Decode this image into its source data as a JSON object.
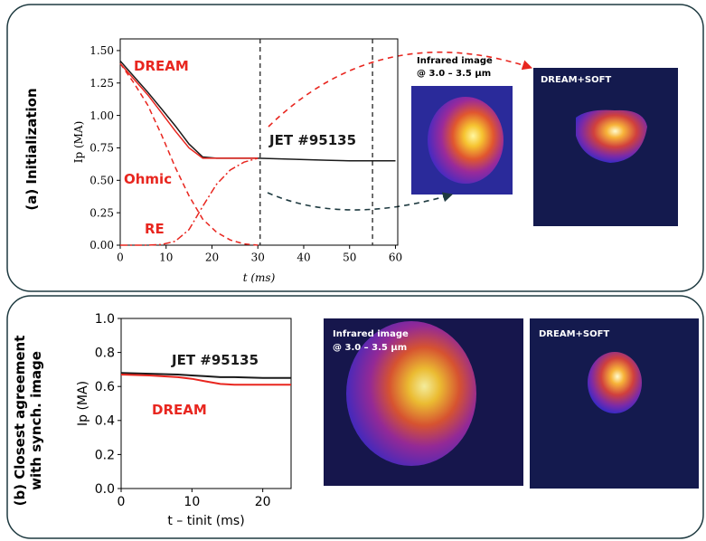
{
  "chart_data": [
    {
      "type": "line",
      "xlabel": "t (ms)",
      "ylabel": "Ip (MA)",
      "x": [
        0,
        3,
        6,
        9,
        12,
        15,
        18,
        21,
        24,
        27,
        30,
        35,
        40,
        45,
        50,
        55,
        60
      ],
      "series": [
        {
          "name": "JET #95135",
          "color": "#1a1a1a",
          "linestyle": "solid",
          "values": [
            1.42,
            1.3,
            1.18,
            1.05,
            0.92,
            0.78,
            0.68,
            0.67,
            0.67,
            0.67,
            0.67,
            0.665,
            0.66,
            0.655,
            0.65,
            0.65,
            0.65
          ]
        },
        {
          "name": "DREAM",
          "color": "#e8261f",
          "linestyle": "solid",
          "values": [
            1.4,
            1.28,
            1.16,
            1.02,
            0.88,
            0.75,
            0.67,
            0.67,
            0.67,
            0.67,
            0.67,
            null,
            null,
            null,
            null,
            null,
            null
          ]
        },
        {
          "name": "Ohmic",
          "color": "#e8261f",
          "linestyle": "dashed",
          "values": [
            1.4,
            1.25,
            1.08,
            0.85,
            0.6,
            0.38,
            0.2,
            0.1,
            0.04,
            0.01,
            0.0,
            null,
            null,
            null,
            null,
            null,
            null
          ]
        },
        {
          "name": "RE",
          "color": "#e8261f",
          "linestyle": "dashdot",
          "values": [
            0,
            0,
            0,
            0.005,
            0.03,
            0.12,
            0.3,
            0.47,
            0.58,
            0.64,
            0.67,
            null,
            null,
            null,
            null,
            null,
            null
          ]
        }
      ],
      "vlines": [
        30.5,
        55
      ],
      "xlim": [
        0,
        60.5
      ],
      "xticks": [
        0,
        10,
        20,
        30,
        40,
        50,
        60
      ],
      "ylim": [
        0,
        1.59
      ],
      "yticks": [
        {
          "value": 0,
          "label": "0.00"
        },
        {
          "value": 0.25,
          "label": "0.25"
        },
        {
          "value": 0.5,
          "label": "0.50"
        },
        {
          "value": 0.75,
          "label": "0.75"
        },
        {
          "value": 1,
          "label": "1.00"
        },
        {
          "value": 1.25,
          "label": "1.25"
        },
        {
          "value": 1.5,
          "label": "1.50"
        }
      ]
    },
    {
      "type": "line",
      "xlabel": "t – tinit (ms)",
      "ylabel": "Ip (MA)",
      "x": [
        0,
        4,
        8,
        10,
        12,
        14,
        16,
        20,
        24
      ],
      "series": [
        {
          "name": "JET #95135",
          "color": "#1a1a1a",
          "linestyle": "solid",
          "values": [
            0.68,
            0.675,
            0.67,
            0.665,
            0.66,
            0.655,
            0.655,
            0.65,
            0.65
          ]
        },
        {
          "name": "DREAM",
          "color": "#e8261f",
          "linestyle": "solid",
          "values": [
            0.67,
            0.665,
            0.655,
            0.645,
            0.63,
            0.615,
            0.61,
            0.61,
            0.61
          ]
        }
      ],
      "xlim": [
        0,
        24
      ],
      "xticks": [
        0,
        10,
        20
      ],
      "ylim": [
        0,
        1.0
      ],
      "yticks": [
        {
          "value": 0,
          "label": "0.0"
        },
        {
          "value": 0.2,
          "label": "0.2"
        },
        {
          "value": 0.4,
          "label": "0.4"
        },
        {
          "value": 0.6,
          "label": "0.6"
        },
        {
          "value": 0.8,
          "label": "0.8"
        },
        {
          "value": 1.0,
          "label": "1.0"
        }
      ]
    }
  ],
  "panels": [
    {
      "label": "(a) Initialization",
      "ir_label": [
        "Infrared image",
        "@ 3.0 – 3.5 μm"
      ],
      "sim_label": "DREAM+SOFT"
    },
    {
      "label": [
        "(b) Closest agreement",
        "with synch. image"
      ],
      "ir_label": [
        "Infrared image",
        "@ 3.0 – 3.5 μm"
      ],
      "sim_label": "DREAM+SOFT"
    }
  ]
}
